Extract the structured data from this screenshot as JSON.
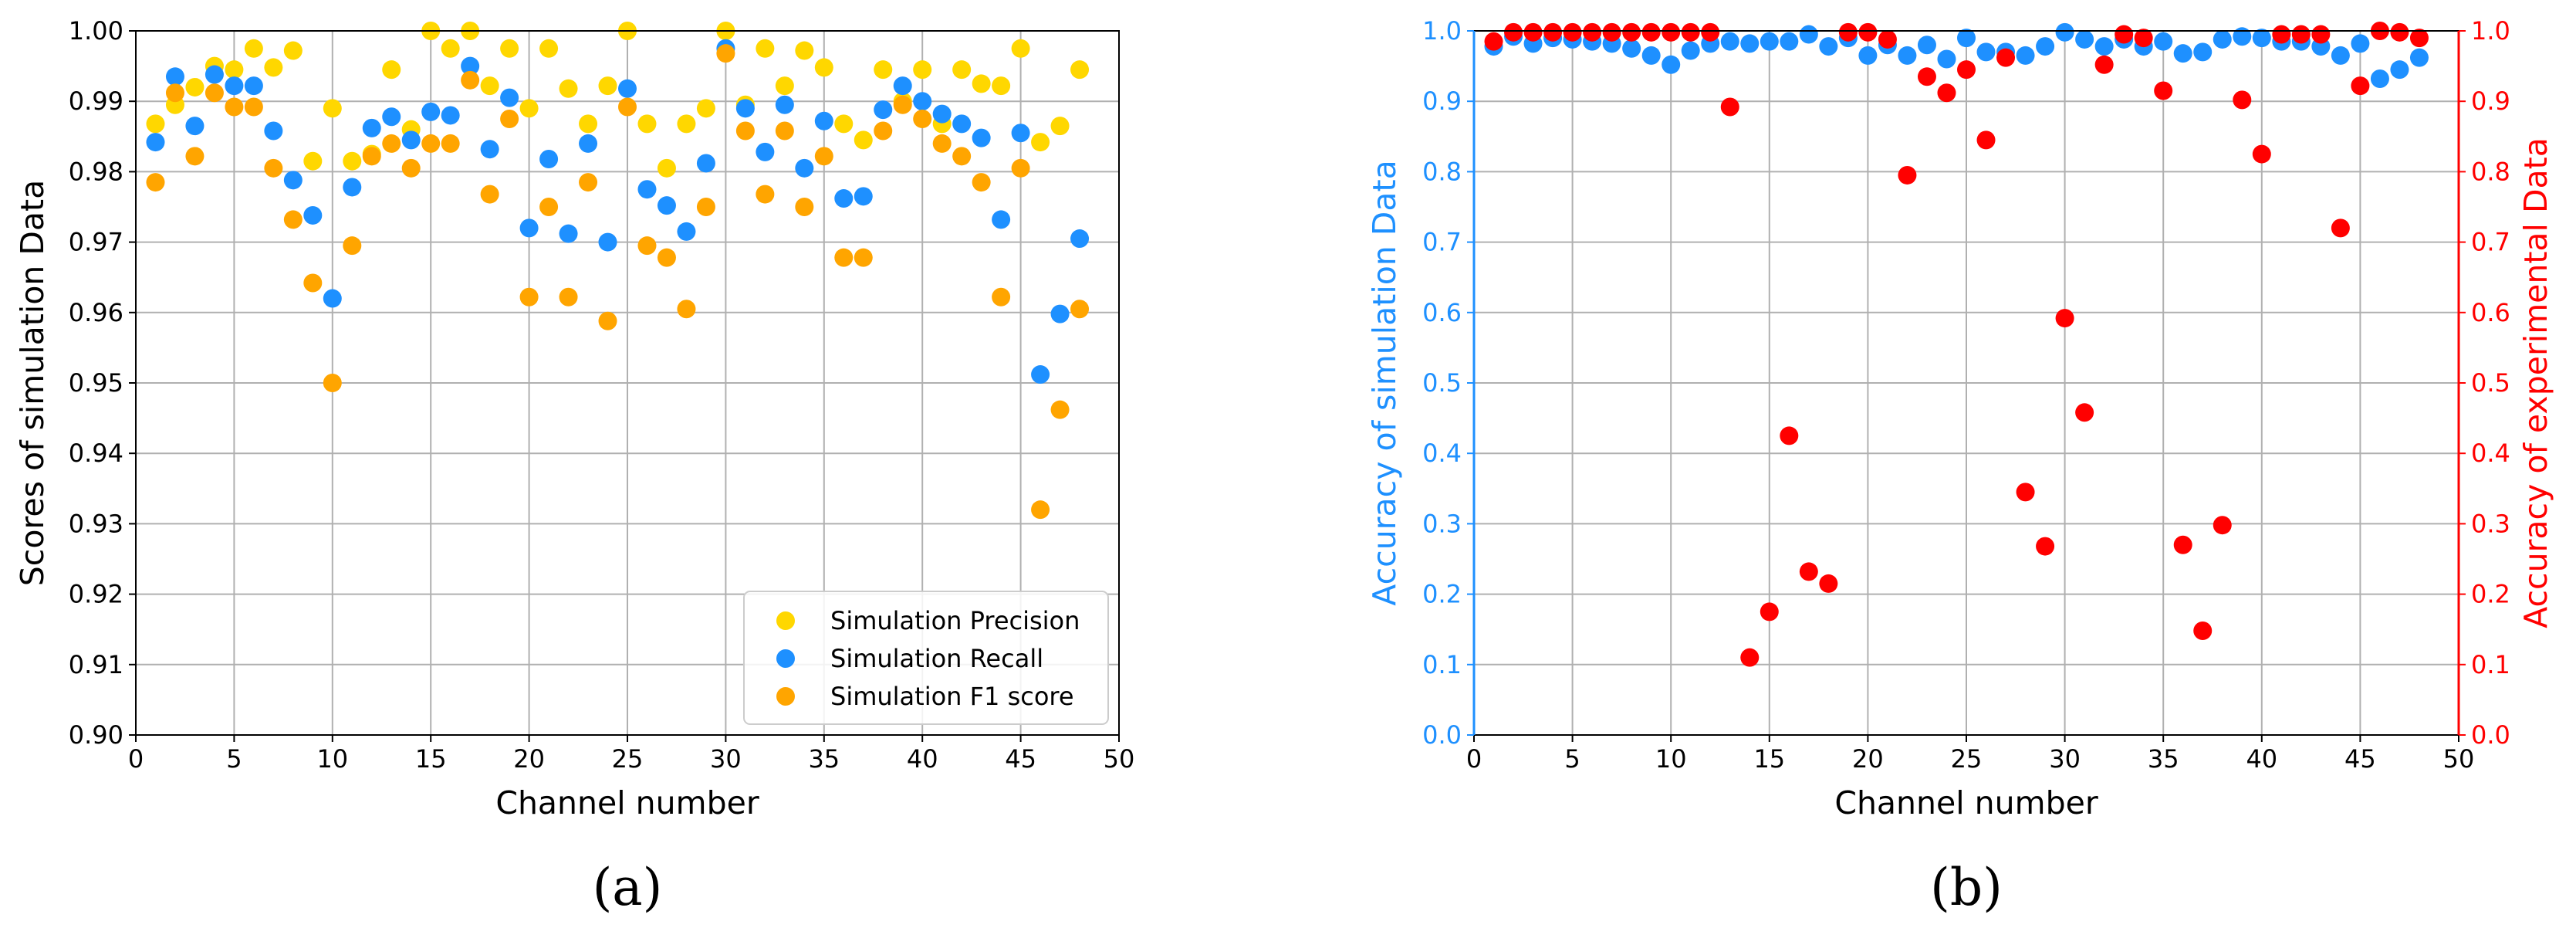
{
  "panels": [
    {
      "tag": "(a)"
    },
    {
      "tag": "(b)"
    }
  ],
  "chart_data": [
    {
      "type": "scatter",
      "xlabel": "Channel number",
      "ylabel": "Scores of simulation Data",
      "xlim": [
        0,
        50
      ],
      "ylim": [
        0.9,
        1.0
      ],
      "xticks": [
        0,
        5,
        10,
        15,
        20,
        25,
        30,
        35,
        40,
        45,
        50
      ],
      "yticks": [
        0.9,
        0.91,
        0.92,
        0.93,
        0.94,
        0.95,
        0.96,
        0.97,
        0.98,
        0.99,
        1.0
      ],
      "grid": true,
      "legend_position": "bottom-right",
      "x": [
        1,
        2,
        3,
        4,
        5,
        6,
        7,
        8,
        9,
        10,
        11,
        12,
        13,
        14,
        15,
        16,
        17,
        18,
        19,
        20,
        21,
        22,
        23,
        24,
        25,
        26,
        27,
        28,
        29,
        30,
        31,
        32,
        33,
        34,
        35,
        36,
        37,
        38,
        39,
        40,
        41,
        42,
        43,
        44,
        45,
        46,
        47,
        48
      ],
      "series": [
        {
          "name": "Simulation Precision",
          "color": "#ffd700",
          "values": [
            0.9868,
            0.9895,
            0.992,
            0.995,
            0.9945,
            0.9975,
            0.9948,
            0.9972,
            0.9815,
            0.989,
            0.9815,
            0.9825,
            0.9945,
            0.986,
            1.0,
            0.9975,
            1.0,
            0.9922,
            0.9975,
            0.989,
            0.9975,
            0.9918,
            0.9868,
            0.9922,
            1.0,
            0.9868,
            0.9805,
            0.9868,
            0.989,
            1.0,
            0.9895,
            0.9975,
            0.9922,
            0.9972,
            0.9948,
            0.9868,
            0.9845,
            0.9945,
            0.99,
            0.9945,
            0.9868,
            0.9945,
            0.9925,
            0.9922,
            0.9975,
            0.9842,
            0.9865,
            0.9945
          ]
        },
        {
          "name": "Simulation Recall",
          "color": "#1e90ff",
          "values": [
            0.9842,
            0.9935,
            0.9865,
            0.9938,
            0.9922,
            0.9922,
            0.9858,
            0.9788,
            0.9738,
            0.962,
            0.9778,
            0.9862,
            0.9878,
            0.9845,
            0.9885,
            0.988,
            0.995,
            0.9832,
            0.9905,
            0.972,
            0.9818,
            0.9712,
            0.984,
            0.97,
            0.9918,
            0.9775,
            0.9752,
            0.9715,
            0.9812,
            0.9975,
            0.989,
            0.9828,
            0.9895,
            0.9805,
            0.9872,
            0.9762,
            0.9765,
            0.9888,
            0.9922,
            0.99,
            0.9882,
            0.9868,
            0.9848,
            0.9732,
            0.9855,
            0.9512,
            0.9598,
            0.9705
          ]
        },
        {
          "name": "Simulation F1 score",
          "color": "#ffa500",
          "values": [
            0.9785,
            0.9912,
            0.9822,
            0.9912,
            0.9892,
            0.9892,
            0.9805,
            0.9732,
            0.9642,
            0.95,
            0.9695,
            0.9822,
            0.984,
            0.9805,
            0.984,
            0.984,
            0.993,
            0.9768,
            0.9875,
            0.9622,
            0.975,
            0.9622,
            0.9785,
            0.9588,
            0.9892,
            0.9695,
            0.9678,
            0.9605,
            0.975,
            0.9968,
            0.9858,
            0.9768,
            0.9858,
            0.975,
            0.9822,
            0.9678,
            0.9678,
            0.9858,
            0.9895,
            0.9875,
            0.984,
            0.9822,
            0.9785,
            0.9622,
            0.9805,
            0.932,
            0.9462,
            0.9605
          ]
        }
      ]
    },
    {
      "type": "scatter",
      "xlabel": "Channel number",
      "ylabel_left": "Accuracy of simulation Data",
      "ylabel_right": "Accuracy of experimental Data",
      "left_axis_color": "#1e90ff",
      "right_axis_color": "#ff0000",
      "xlim": [
        0,
        50
      ],
      "ylim": [
        0.0,
        1.0
      ],
      "xticks": [
        0,
        5,
        10,
        15,
        20,
        25,
        30,
        35,
        40,
        45,
        50
      ],
      "yticks": [
        0.0,
        0.1,
        0.2,
        0.3,
        0.4,
        0.5,
        0.6,
        0.7,
        0.8,
        0.9,
        1.0
      ],
      "grid": true,
      "x": [
        1,
        2,
        3,
        4,
        5,
        6,
        7,
        8,
        9,
        10,
        11,
        12,
        13,
        14,
        15,
        16,
        17,
        18,
        19,
        20,
        21,
        22,
        23,
        24,
        25,
        26,
        27,
        28,
        29,
        30,
        31,
        32,
        33,
        34,
        35,
        36,
        37,
        38,
        39,
        40,
        41,
        42,
        43,
        44,
        45,
        46,
        47,
        48
      ],
      "series": [
        {
          "axis": "left",
          "color": "#1e90ff",
          "values": [
            0.978,
            0.992,
            0.982,
            0.99,
            0.988,
            0.985,
            0.982,
            0.975,
            0.965,
            0.952,
            0.972,
            0.982,
            0.985,
            0.982,
            0.985,
            0.985,
            0.995,
            0.978,
            0.99,
            0.965,
            0.98,
            0.965,
            0.98,
            0.96,
            0.99,
            0.97,
            0.97,
            0.965,
            0.978,
            0.998,
            0.988,
            0.978,
            0.988,
            0.978,
            0.985,
            0.968,
            0.97,
            0.988,
            0.992,
            0.99,
            0.985,
            0.985,
            0.978,
            0.965,
            0.982,
            0.932,
            0.945,
            0.962
          ]
        },
        {
          "axis": "right",
          "color": "#ff0000",
          "values": [
            0.985,
            0.998,
            0.998,
            0.998,
            0.998,
            0.998,
            0.998,
            0.998,
            0.998,
            0.998,
            0.998,
            0.998,
            0.892,
            0.11,
            0.175,
            0.425,
            0.232,
            0.215,
            0.998,
            0.998,
            0.988,
            0.795,
            0.935,
            0.912,
            0.945,
            0.845,
            0.962,
            0.345,
            0.268,
            0.592,
            0.458,
            0.952,
            0.995,
            0.99,
            0.915,
            0.27,
            0.148,
            0.298,
            0.902,
            0.825,
            0.995,
            0.995,
            0.995,
            0.72,
            0.922,
            1.0,
            0.998,
            0.99
          ]
        }
      ]
    }
  ]
}
